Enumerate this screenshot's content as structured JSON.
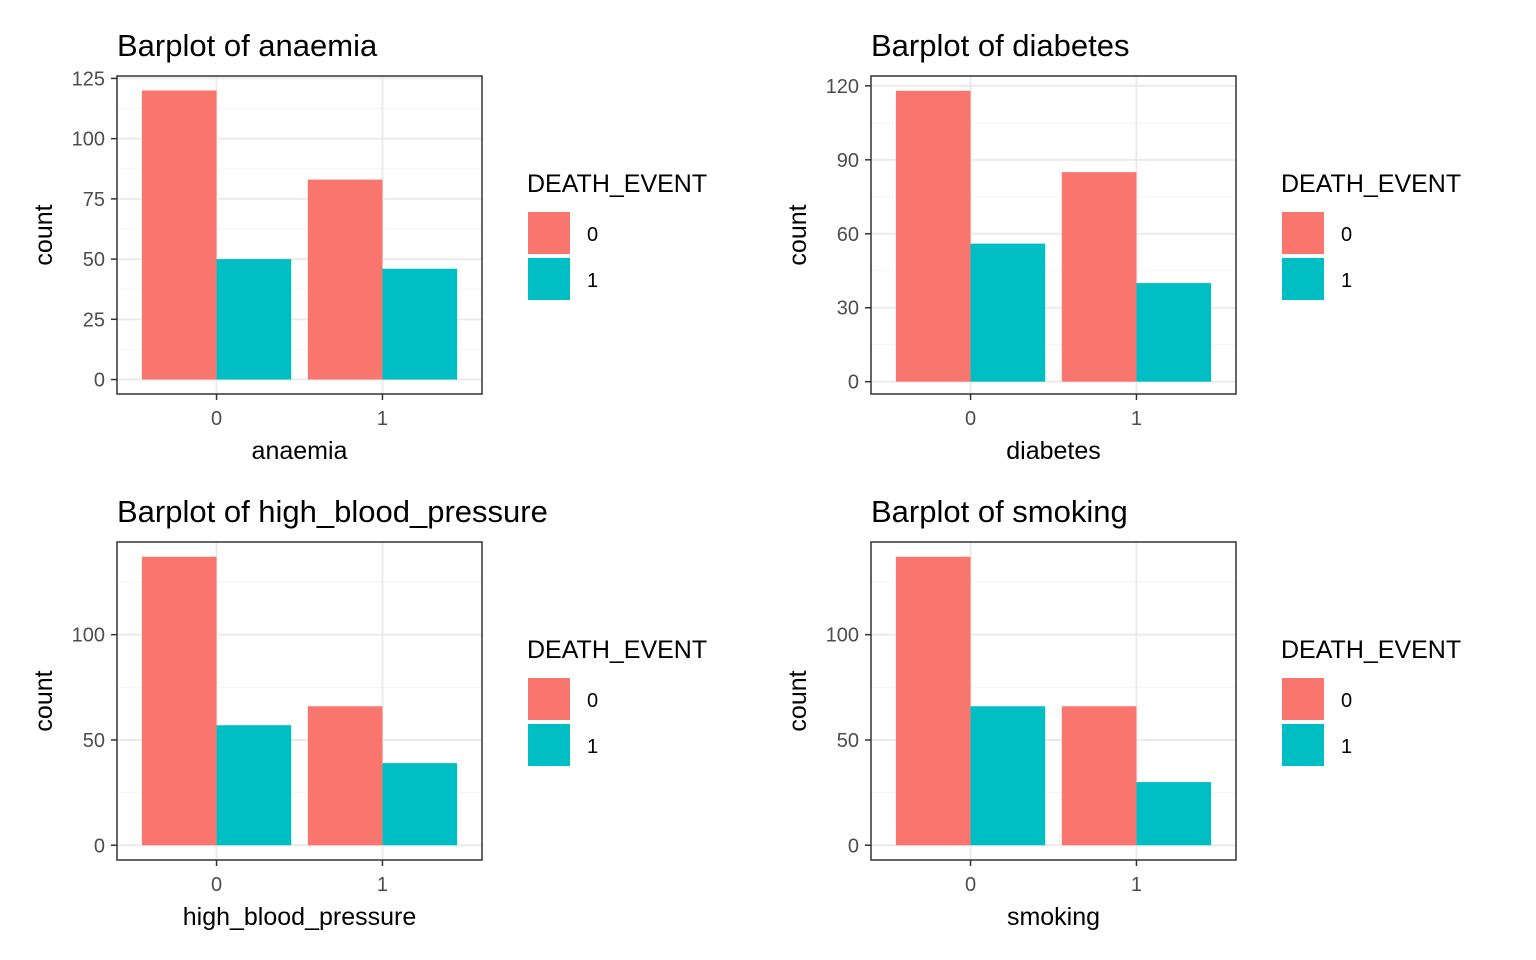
{
  "figure": {
    "background": "#ffffff",
    "colors": {
      "series_0": "#F8766D",
      "series_1": "#00BFC4",
      "panel_border": "#333333",
      "grid_major": "#ebebeb",
      "grid_minor": "#f5f5f5",
      "tick_text": "#4d4d4d"
    }
  },
  "chart_data": [
    {
      "type": "bar",
      "title": "Barplot of anaemia",
      "xlabel": "anaemia",
      "ylabel": "count",
      "categories": [
        "0",
        "1"
      ],
      "series": [
        {
          "name": "0",
          "values": [
            120,
            83
          ]
        },
        {
          "name": "1",
          "values": [
            50,
            46
          ]
        }
      ],
      "ylim": [
        -6,
        126
      ],
      "yticks": [
        0,
        25,
        50,
        75,
        100,
        125
      ],
      "grid": true,
      "legend": {
        "title": "DEATH_EVENT",
        "placement": "right",
        "entries": [
          "0",
          "1"
        ]
      }
    },
    {
      "type": "bar",
      "title": "Barplot of diabetes",
      "xlabel": "diabetes",
      "ylabel": "count",
      "categories": [
        "0",
        "1"
      ],
      "series": [
        {
          "name": "0",
          "values": [
            118,
            85
          ]
        },
        {
          "name": "1",
          "values": [
            56,
            40
          ]
        }
      ],
      "ylim": [
        -5,
        124
      ],
      "yticks": [
        0,
        30,
        60,
        90,
        120
      ],
      "grid": true,
      "legend": {
        "title": "DEATH_EVENT",
        "placement": "right",
        "entries": [
          "0",
          "1"
        ]
      }
    },
    {
      "type": "bar",
      "title": "Barplot of high_blood_pressure",
      "xlabel": "high_blood_pressure",
      "ylabel": "count",
      "categories": [
        "0",
        "1"
      ],
      "series": [
        {
          "name": "0",
          "values": [
            137,
            66
          ]
        },
        {
          "name": "1",
          "values": [
            57,
            39
          ]
        }
      ],
      "ylim": [
        -7,
        144
      ],
      "yticks": [
        0,
        50,
        100
      ],
      "grid": true,
      "legend": {
        "title": "DEATH_EVENT",
        "placement": "right",
        "entries": [
          "0",
          "1"
        ]
      }
    },
    {
      "type": "bar",
      "title": "Barplot of smoking",
      "xlabel": "smoking",
      "ylabel": "count",
      "categories": [
        "0",
        "1"
      ],
      "series": [
        {
          "name": "0",
          "values": [
            137,
            66
          ]
        },
        {
          "name": "1",
          "values": [
            66,
            30
          ]
        }
      ],
      "ylim": [
        -7,
        144
      ],
      "yticks": [
        0,
        50,
        100
      ],
      "grid": true,
      "legend": {
        "title": "DEATH_EVENT",
        "placement": "right",
        "entries": [
          "0",
          "1"
        ]
      }
    }
  ]
}
